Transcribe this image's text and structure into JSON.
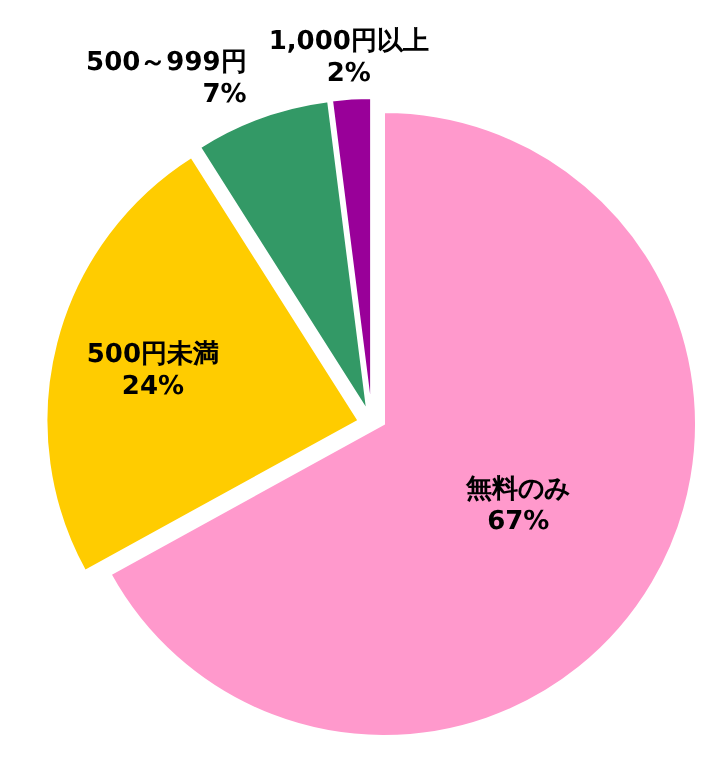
{
  "chart_data": {
    "type": "pie",
    "categories": [
      "無料のみ",
      "500円未満",
      "500～999円",
      "1,000円以上"
    ],
    "values": [
      67,
      24,
      7,
      2
    ],
    "value_labels": [
      "67%",
      "24%",
      "7%",
      "2%"
    ],
    "colors": [
      "#ff99cc",
      "#ffcc00",
      "#339966",
      "#990099"
    ]
  }
}
